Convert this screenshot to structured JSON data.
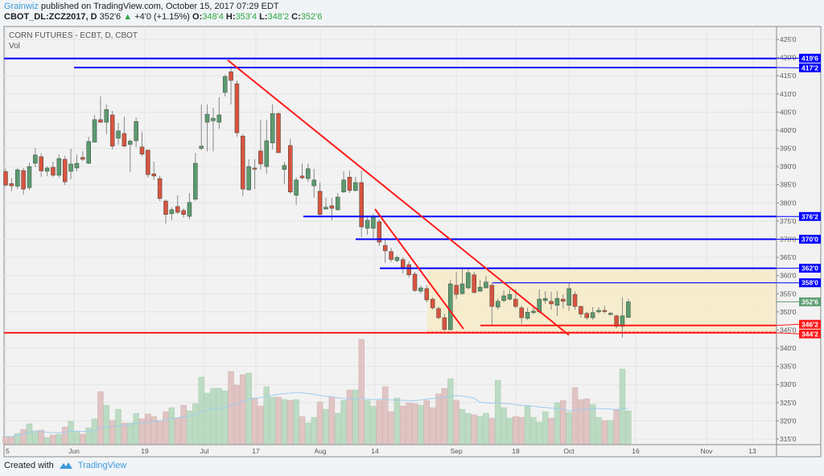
{
  "header": {
    "author": "Grainwiz",
    "published": " published on TradingView.com, October 15, 2017 07:29 EDT",
    "symbol": "CBOT_DL:ZCZ2017, D",
    "last": "352'6",
    "change_arrow": "▲",
    "change": "+4'0 (+1.15%)",
    "o_label": "O:",
    "o": "348'4",
    "h_label": "H:",
    "h": "353'4",
    "l_label": "L:",
    "l": "348'2",
    "c_label": "C:",
    "c": "352'6"
  },
  "chart_data": {
    "type": "candlestick",
    "title": "CORN FUTURES - ECBT, D, CBOT",
    "volume_label": "Vol",
    "ylim": [
      313,
      428
    ],
    "price_ticks": [
      "425'0",
      "420'0",
      "415'0",
      "410'0",
      "405'0",
      "400'0",
      "395'0",
      "390'0",
      "385'0",
      "380'0",
      "375'0",
      "370'0",
      "365'0",
      "360'0",
      "355'0",
      "350'0",
      "345'0",
      "340'0",
      "335'0",
      "330'0",
      "325'0",
      "320'0",
      "315'0"
    ],
    "price_tick_values": [
      425,
      420,
      415,
      410,
      405,
      400,
      395,
      390,
      385,
      380,
      375,
      370,
      365,
      360,
      355,
      350,
      345,
      340,
      335,
      330,
      325,
      320,
      315
    ],
    "time_ticks": [
      "5",
      "Jun",
      "19",
      "Jul",
      "17",
      "Aug",
      "14",
      "Sep",
      "18",
      "Oct",
      "16",
      "Nov",
      "13"
    ],
    "grid": true,
    "colors": {
      "up": "#5b9a6f",
      "down": "#d9533f",
      "vol_up": "#b7d9bf",
      "vol_down": "#dfc0bf",
      "vol_ma": "#9fcdef",
      "blue_line": "#0000ff",
      "red_line": "#ff1a1a",
      "zone": "#f7ebc8",
      "last_badge": "#5e9e74"
    },
    "candles_ohlc": [
      [
        388.6,
        389.4,
        384.5,
        384.9
      ],
      [
        385.3,
        386.8,
        383.2,
        384.7
      ],
      [
        384.6,
        389.6,
        383.8,
        389.1
      ],
      [
        388.9,
        389.6,
        382.3,
        383.8
      ],
      [
        384.2,
        391,
        383.5,
        390
      ],
      [
        390.9,
        395.1,
        389.8,
        393.2
      ],
      [
        392.7,
        393.6,
        387.2,
        388.8
      ],
      [
        388.7,
        390,
        387.4,
        389.6
      ],
      [
        389.8,
        391.3,
        387.2,
        387.6
      ],
      [
        387.6,
        393.3,
        386.9,
        392.2
      ],
      [
        392,
        393,
        384.9,
        385.8
      ],
      [
        388.7,
        394.9,
        386.5,
        390.7
      ],
      [
        389.6,
        393.3,
        388.7,
        390.9
      ],
      [
        392.5,
        394.2,
        391.5,
        392
      ],
      [
        390.9,
        398.2,
        390.7,
        396.9
      ],
      [
        396.7,
        404.2,
        396.7,
        402.9
      ],
      [
        402.9,
        409.3,
        402,
        402.2
      ],
      [
        402.2,
        407.1,
        398.9,
        405.7
      ],
      [
        404.2,
        405.3,
        394.7,
        395.6
      ],
      [
        397.8,
        402,
        396,
        399.8
      ],
      [
        399.1,
        403.7,
        395.3,
        395.6
      ],
      [
        396.1,
        397.5,
        388.5,
        397
      ],
      [
        397.1,
        403.5,
        395.3,
        402.4
      ],
      [
        395.4,
        399.5,
        392.8,
        393.4
      ],
      [
        394.5,
        394.7,
        386.9,
        387.8
      ],
      [
        388,
        391.3,
        386.3,
        387.4
      ],
      [
        386.7,
        387.5,
        380.5,
        381.2
      ],
      [
        380.5,
        381,
        374.3,
        376.8
      ],
      [
        377,
        378.8,
        375.2,
        378.1
      ],
      [
        379,
        382.1,
        377,
        377.4
      ],
      [
        377.9,
        378.5,
        376,
        376.8
      ],
      [
        376.3,
        382.7,
        375.5,
        380.1
      ],
      [
        381,
        393.8,
        380.5,
        390.9
      ],
      [
        395,
        407.1,
        394.5,
        395.6
      ],
      [
        402.2,
        407.1,
        394.2,
        404.4
      ],
      [
        402.6,
        406.2,
        394.2,
        403.3
      ],
      [
        402.2,
        409.1,
        400.4,
        404.2
      ],
      [
        410.4,
        415.3,
        409.3,
        414.8
      ],
      [
        416.1,
        417.7,
        407.1,
        413.7
      ],
      [
        412.8,
        413.7,
        398.2,
        399.3
      ],
      [
        398.4,
        399,
        381.8,
        383.8
      ],
      [
        383.6,
        392,
        383.4,
        390
      ],
      [
        389.6,
        392,
        383.8,
        389.4
      ],
      [
        394.3,
        402.9,
        389.1,
        390.7
      ],
      [
        390,
        402.9,
        388,
        397.1
      ],
      [
        396.5,
        407.1,
        394.7,
        404.6
      ],
      [
        404.6,
        405,
        393.8,
        393.8
      ],
      [
        389.2,
        391.3,
        385.2,
        390.3
      ],
      [
        395.8,
        397.6,
        382.5,
        383
      ],
      [
        382.1,
        387,
        379.4,
        386.3
      ],
      [
        387.4,
        390.9,
        386.5,
        386.9
      ],
      [
        386.7,
        390.9,
        385.8,
        389.4
      ],
      [
        384.7,
        389.4,
        381.4,
        386.3
      ],
      [
        383.2,
        385.6,
        376.1,
        376.8
      ],
      [
        378.3,
        381.4,
        378.1,
        378.8
      ],
      [
        379.2,
        381.4,
        375.2,
        378.5
      ],
      [
        378.1,
        382.7,
        377.9,
        381.6
      ],
      [
        383,
        388.7,
        382.7,
        386.3
      ],
      [
        387.1,
        388.9,
        382.7,
        383.4
      ],
      [
        383.4,
        387.2,
        383.2,
        385.6
      ],
      [
        385.6,
        388.9,
        370.6,
        373.4
      ],
      [
        373,
        376.5,
        371.2,
        375.2
      ],
      [
        373,
        377,
        370.3,
        376.1
      ],
      [
        374.8,
        375.5,
        368.1,
        369.2
      ],
      [
        368.3,
        369.9,
        363.5,
        366.8
      ],
      [
        366.6,
        367.7,
        363.7,
        364.4
      ],
      [
        364.1,
        365.5,
        363.7,
        365
      ],
      [
        364.4,
        365,
        360.6,
        362.2
      ],
      [
        363,
        363.9,
        359.5,
        360.2
      ],
      [
        360.4,
        361,
        355.5,
        355.9
      ],
      [
        355.7,
        357.3,
        355.1,
        356.6
      ],
      [
        356.4,
        357.3,
        352.6,
        353.3
      ],
      [
        353.5,
        354,
        350.6,
        351.1
      ],
      [
        350.9,
        351.5,
        348,
        348.4
      ],
      [
        348.4,
        349.5,
        344.9,
        345.1
      ],
      [
        345.1,
        358.8,
        344.9,
        357.7
      ],
      [
        357.3,
        361,
        353.5,
        354.8
      ],
      [
        355,
        361.9,
        354.8,
        357.7
      ],
      [
        356.6,
        362.1,
        356.2,
        360.8
      ],
      [
        360.2,
        361,
        355.1,
        355.3
      ],
      [
        355.7,
        358.8,
        355.5,
        356.8
      ],
      [
        356.6,
        359.9,
        356.6,
        358.2
      ],
      [
        357.3,
        358,
        346,
        351.5
      ],
      [
        351.3,
        353.7,
        350.6,
        352.9
      ],
      [
        353.1,
        355.9,
        352.6,
        354.4
      ],
      [
        353.5,
        356.2,
        353.1,
        354.8
      ],
      [
        353.5,
        356.2,
        350.9,
        351.5
      ],
      [
        351.1,
        351.7,
        346.7,
        348.4
      ],
      [
        348.2,
        351.1,
        347.8,
        349.9
      ],
      [
        349.8,
        351.7,
        349.3,
        350.2
      ],
      [
        350,
        356.2,
        349.5,
        353.5
      ],
      [
        353.1,
        355.7,
        352.2,
        353.7
      ],
      [
        352.9,
        355.5,
        350.6,
        352.2
      ],
      [
        351.8,
        355.7,
        348.9,
        353.7
      ],
      [
        353.5,
        354.8,
        350.9,
        352.9
      ],
      [
        351.8,
        358,
        350.2,
        356.4
      ],
      [
        354.8,
        355.7,
        350.6,
        351.5
      ],
      [
        351.5,
        351.7,
        348.4,
        349.4
      ],
      [
        349.6,
        350,
        347.8,
        348.4
      ],
      [
        348.4,
        351.3,
        347.8,
        349.8
      ],
      [
        350,
        351.3,
        349.5,
        350.4
      ],
      [
        350.4,
        351.7,
        349.5,
        350.2
      ],
      [
        349.3,
        350,
        349,
        349.6
      ],
      [
        348.9,
        349.2,
        345.5,
        346
      ],
      [
        346,
        354,
        342.9,
        348.9
      ],
      [
        348.5,
        353.5,
        348.25,
        352.75
      ]
    ],
    "volume_relative": [
      9,
      9,
      13,
      18,
      25,
      16,
      17,
      8,
      11,
      12,
      21,
      28,
      16,
      12,
      20,
      31,
      65,
      48,
      29,
      43,
      26,
      26,
      38,
      31,
      37,
      34,
      29,
      40,
      45,
      32,
      48,
      41,
      50,
      83,
      63,
      69,
      69,
      66,
      90,
      73,
      86,
      88,
      57,
      47,
      71,
      58,
      58,
      55,
      54,
      55,
      34,
      26,
      33,
      52,
      43,
      58,
      38,
      54,
      67,
      67,
      130,
      54,
      47,
      54,
      71,
      40,
      57,
      47,
      51,
      50,
      48,
      54,
      45,
      62,
      69,
      81,
      54,
      43,
      38,
      36,
      34,
      38,
      32,
      79,
      45,
      32,
      34,
      33,
      47,
      33,
      27,
      40,
      32,
      51,
      54,
      39,
      70,
      55,
      56,
      49,
      33,
      29,
      29,
      43,
      93,
      41
    ],
    "horizontal_levels": [
      {
        "price": 419.75,
        "label": "419'6",
        "color": "blue"
      },
      {
        "price": 417.25,
        "label": "417'2",
        "color": "blue"
      },
      {
        "price": 376.25,
        "label": "376'2",
        "color": "blue"
      },
      {
        "price": 370,
        "label": "370'0",
        "color": "blue"
      },
      {
        "price": 362,
        "label": "362'0",
        "color": "blue"
      },
      {
        "price": 358,
        "label": "358'0",
        "color": "blue"
      },
      {
        "price": 346.25,
        "label": "346'2",
        "color": "red"
      },
      {
        "price": 344.25,
        "label": "344'2",
        "color": "red"
      }
    ],
    "last_price": {
      "price": 352.75,
      "label": "352'6"
    },
    "zone": {
      "top": 362,
      "bottom": 344.25
    },
    "trendlines": [
      {
        "from_price": 419.3,
        "to_price": 343.6
      },
      {
        "from_price": 378.3,
        "to_price": 345.3
      }
    ]
  },
  "footer": {
    "created_with": "Created with",
    "brand": "TradingView"
  }
}
